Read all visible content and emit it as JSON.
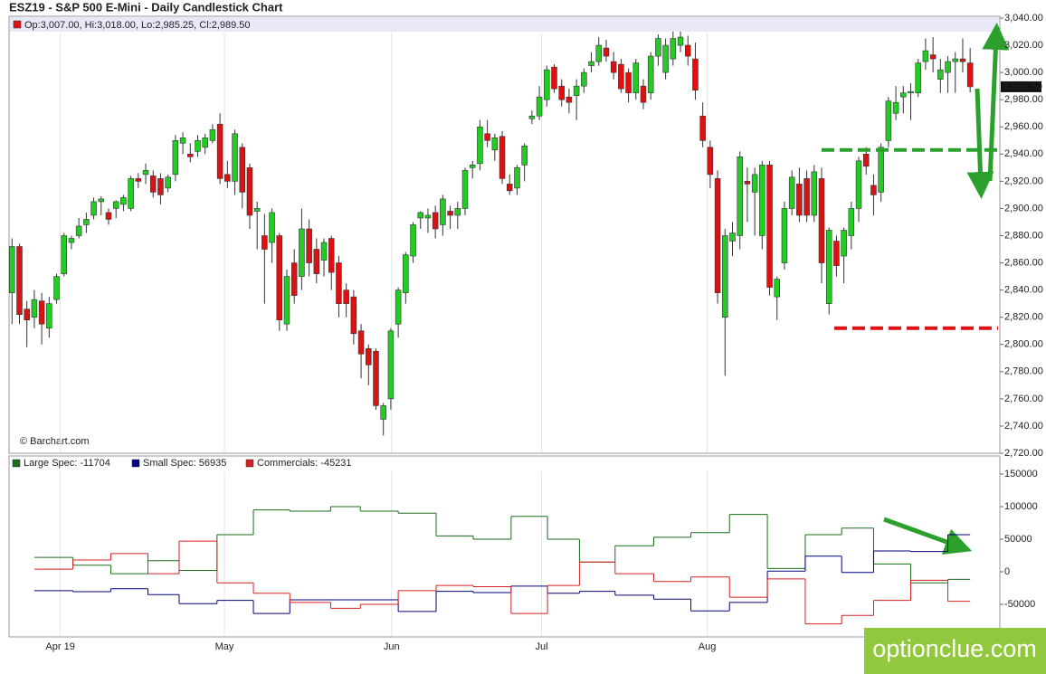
{
  "title": "ESZ19 - S&P 500 E-Mini - Daily Candlestick Chart",
  "copyright": "© Barchart.com",
  "watermark": "optionclue.com",
  "chart_data": [
    {
      "type": "candlestick",
      "legend": "Op:3,007.00, Hi:3,018.00, Lo:2,985.25, Cl:2,989.50",
      "up_color": "#22cc22",
      "down_color": "#dd1111",
      "xlim": [
        -0.4,
        133
      ],
      "xticks": [
        {
          "value": 6.5,
          "label": "Apr 19"
        },
        {
          "value": 28.6,
          "label": "May"
        },
        {
          "value": 51.1,
          "label": "Jun"
        },
        {
          "value": 71.3,
          "label": "Jul"
        },
        {
          "value": 93.6,
          "label": "Aug"
        }
      ],
      "ylim": [
        2720,
        3040
      ],
      "yticks": [
        {
          "value": 2720,
          "label": "2,720.00"
        },
        {
          "value": 2740,
          "label": "2,740.00"
        },
        {
          "value": 2760,
          "label": "2,760.00"
        },
        {
          "value": 2780,
          "label": "2,780.00"
        },
        {
          "value": 2800,
          "label": "2,800.00"
        },
        {
          "value": 2820,
          "label": "2,820.00"
        },
        {
          "value": 2840,
          "label": "2,840.00"
        },
        {
          "value": 2860,
          "label": "2,860.00"
        },
        {
          "value": 2880,
          "label": "2,880.00"
        },
        {
          "value": 2900,
          "label": "2,900.00"
        },
        {
          "value": 2920,
          "label": "2,920.00"
        },
        {
          "value": 2940,
          "label": "2,940.00"
        },
        {
          "value": 2960,
          "label": "2,960.00"
        },
        {
          "value": 2980,
          "label": "2,980.00"
        },
        {
          "value": 3000,
          "label": "3,000.00"
        },
        {
          "value": 3020,
          "label": "3,020.00"
        },
        {
          "value": 3040,
          "label": "3,040.00"
        }
      ],
      "last_price": {
        "value": 2989.5,
        "label": "2,989.50"
      },
      "reference_lines": [
        {
          "value": 2943,
          "color": "#2ca02c",
          "from": 109
        },
        {
          "value": 2812,
          "color": "#dd1111",
          "from": 110.7
        }
      ],
      "ohlc": [
        [
          2838,
          2878,
          2815,
          2872
        ],
        [
          2872,
          2874,
          2815,
          2822
        ],
        [
          2826,
          2832,
          2798,
          2818
        ],
        [
          2820,
          2840,
          2812,
          2833
        ],
        [
          2832,
          2838,
          2800,
          2815
        ],
        [
          2812,
          2835,
          2805,
          2830
        ],
        [
          2833,
          2852,
          2830,
          2850
        ],
        [
          2852,
          2882,
          2850,
          2880
        ],
        [
          2875,
          2880,
          2870,
          2878
        ],
        [
          2880,
          2893,
          2878,
          2887
        ],
        [
          2888,
          2897,
          2882,
          2892
        ],
        [
          2895,
          2908,
          2892,
          2905
        ],
        [
          2905,
          2909,
          2895,
          2907
        ],
        [
          2897,
          2900,
          2888,
          2892
        ],
        [
          2900,
          2906,
          2893,
          2905
        ],
        [
          2903,
          2910,
          2898,
          2908
        ],
        [
          2900,
          2924,
          2898,
          2922
        ],
        [
          2922,
          2926,
          2915,
          2920
        ],
        [
          2925,
          2933,
          2918,
          2928
        ],
        [
          2924,
          2928,
          2908,
          2912
        ],
        [
          2922,
          2926,
          2903,
          2910
        ],
        [
          2915,
          2925,
          2912,
          2923
        ],
        [
          2925,
          2954,
          2920,
          2950
        ],
        [
          2948,
          2956,
          2940,
          2952
        ],
        [
          2940,
          2948,
          2934,
          2938
        ],
        [
          2942,
          2954,
          2938,
          2950
        ],
        [
          2945,
          2955,
          2940,
          2952
        ],
        [
          2950,
          2962,
          2948,
          2958
        ],
        [
          2962,
          2970,
          2918,
          2922
        ],
        [
          2925,
          2935,
          2915,
          2920
        ],
        [
          2920,
          2958,
          2910,
          2955
        ],
        [
          2945,
          2948,
          2900,
          2912
        ],
        [
          2930,
          2933,
          2885,
          2895
        ],
        [
          2898,
          2905,
          2870,
          2900
        ],
        [
          2880,
          2896,
          2830,
          2870
        ],
        [
          2875,
          2900,
          2860,
          2897
        ],
        [
          2880,
          2882,
          2810,
          2818
        ],
        [
          2815,
          2855,
          2810,
          2850
        ],
        [
          2860,
          2870,
          2830,
          2836
        ],
        [
          2850,
          2900,
          2840,
          2885
        ],
        [
          2885,
          2892,
          2850,
          2860
        ],
        [
          2870,
          2878,
          2845,
          2852
        ],
        [
          2862,
          2878,
          2850,
          2875
        ],
        [
          2878,
          2880,
          2840,
          2853
        ],
        [
          2860,
          2865,
          2820,
          2830
        ],
        [
          2840,
          2845,
          2820,
          2830
        ],
        [
          2835,
          2840,
          2800,
          2808
        ],
        [
          2810,
          2815,
          2775,
          2793
        ],
        [
          2797,
          2800,
          2770,
          2785
        ],
        [
          2795,
          2797,
          2752,
          2755
        ],
        [
          2745,
          2757,
          2733,
          2755
        ],
        [
          2760,
          2812,
          2752,
          2810
        ],
        [
          2815,
          2842,
          2805,
          2840
        ],
        [
          2838,
          2868,
          2830,
          2866
        ],
        [
          2865,
          2890,
          2860,
          2888
        ],
        [
          2893,
          2898,
          2885,
          2897
        ],
        [
          2893,
          2900,
          2882,
          2895
        ],
        [
          2897,
          2902,
          2878,
          2885
        ],
        [
          2888,
          2910,
          2880,
          2907
        ],
        [
          2898,
          2902,
          2885,
          2895
        ],
        [
          2895,
          2905,
          2885,
          2900
        ],
        [
          2900,
          2930,
          2895,
          2928
        ],
        [
          2930,
          2935,
          2922,
          2932
        ],
        [
          2933,
          2965,
          2928,
          2960
        ],
        [
          2955,
          2965,
          2945,
          2950
        ],
        [
          2943,
          2955,
          2935,
          2952
        ],
        [
          2953,
          2957,
          2918,
          2922
        ],
        [
          2918,
          2925,
          2910,
          2913
        ],
        [
          2915,
          2932,
          2910,
          2930
        ],
        [
          2932,
          2948,
          2920,
          2946
        ],
        [
          2966,
          2972,
          2962,
          2968
        ],
        [
          2968,
          2990,
          2965,
          2982
        ],
        [
          2980,
          3005,
          2975,
          3002
        ],
        [
          3004,
          3006,
          2985,
          2988
        ],
        [
          2990,
          2995,
          2975,
          2980
        ],
        [
          2982,
          2988,
          2970,
          2978
        ],
        [
          2983,
          2995,
          2965,
          2990
        ],
        [
          2990,
          3003,
          2985,
          3000
        ],
        [
          3005,
          3015,
          3000,
          3008
        ],
        [
          3008,
          3026,
          3005,
          3020
        ],
        [
          3018,
          3024,
          3008,
          3012
        ],
        [
          3008,
          3015,
          2995,
          3000
        ],
        [
          3006,
          3010,
          2985,
          2988
        ],
        [
          3000,
          3003,
          2978,
          2985
        ],
        [
          2985,
          3010,
          2980,
          3007
        ],
        [
          2990,
          2995,
          2973,
          2978
        ],
        [
          2985,
          3015,
          2980,
          3012
        ],
        [
          3012,
          3028,
          3005,
          3025
        ],
        [
          3000,
          3025,
          2995,
          3020
        ],
        [
          3010,
          3030,
          3005,
          3025
        ],
        [
          3020,
          3030,
          3015,
          3026
        ],
        [
          3020,
          3027,
          3005,
          3012
        ],
        [
          3010,
          3022,
          2980,
          2987
        ],
        [
          2968,
          2978,
          2945,
          2950
        ],
        [
          2945,
          2950,
          2915,
          2925
        ],
        [
          2922,
          2928,
          2830,
          2838
        ],
        [
          2820,
          2885,
          2777,
          2880
        ],
        [
          2876,
          2890,
          2865,
          2882
        ],
        [
          2880,
          2942,
          2870,
          2938
        ],
        [
          2920,
          2930,
          2890,
          2918
        ],
        [
          2912,
          2930,
          2880,
          2925
        ],
        [
          2880,
          2935,
          2870,
          2932
        ],
        [
          2932,
          2935,
          2836,
          2842
        ],
        [
          2835,
          2850,
          2818,
          2848
        ],
        [
          2860,
          2905,
          2855,
          2900
        ],
        [
          2900,
          2928,
          2895,
          2923
        ],
        [
          2918,
          2930,
          2890,
          2895
        ],
        [
          2922,
          2928,
          2890,
          2895
        ],
        [
          2895,
          2932,
          2890,
          2927
        ],
        [
          2922,
          2930,
          2845,
          2860
        ],
        [
          2830,
          2886,
          2822,
          2884
        ],
        [
          2876,
          2880,
          2850,
          2858
        ],
        [
          2865,
          2886,
          2845,
          2884
        ],
        [
          2880,
          2905,
          2870,
          2900
        ],
        [
          2900,
          2938,
          2890,
          2935
        ],
        [
          2940,
          2945,
          2925,
          2931
        ],
        [
          2917,
          2925,
          2895,
          2910
        ],
        [
          2912,
          2948,
          2905,
          2945
        ],
        [
          2950,
          2982,
          2945,
          2979
        ],
        [
          2970,
          2990,
          2965,
          2978
        ],
        [
          2982,
          2990,
          2970,
          2985
        ],
        [
          2985,
          2992,
          2965,
          2986
        ],
        [
          2985,
          3010,
          2982,
          3007
        ],
        [
          3008,
          3025,
          3002,
          3016
        ],
        [
          3013,
          3026,
          3000,
          3010
        ],
        [
          2995,
          3010,
          2985,
          3002
        ],
        [
          3000,
          3012,
          2985,
          3008
        ],
        [
          3008,
          3015,
          2985,
          3010
        ],
        [
          3010,
          3025,
          3000,
          3008
        ],
        [
          3007,
          3018,
          2985.25,
          2989.5
        ]
      ]
    },
    {
      "type": "line",
      "step": true,
      "x": [
        3.0,
        8.2,
        13.3,
        18.3,
        22.5,
        27.6,
        32.5,
        37.4,
        42.9,
        46.9,
        52.0,
        57.1,
        62.1,
        67.2,
        72.1,
        76.4,
        81.2,
        86.4,
        91.4,
        96.6,
        101.7,
        106.8,
        111.7,
        116.0,
        121.0,
        126.0
      ],
      "ylim": [
        -100000,
        175000
      ],
      "yticks": [
        150000,
        100000,
        50000,
        0,
        -50000
      ],
      "series": [
        {
          "name": "Large Spec: -11704",
          "color": "#1a6b1a",
          "values": [
            22000,
            10000,
            -3000,
            17000,
            2000,
            57000,
            95000,
            93000,
            100000,
            93000,
            90000,
            55000,
            50000,
            85000,
            50000,
            15000,
            40000,
            53000,
            60000,
            88000,
            5000,
            57000,
            67000,
            12000,
            -17000,
            -11704
          ]
        },
        {
          "name": "Small Spec: 56935",
          "color": "#00007f",
          "values": [
            -29000,
            -30500,
            -26000,
            -35000,
            -49000,
            -44000,
            -64000,
            -43000,
            -43000,
            -43000,
            -61000,
            -30000,
            -32000,
            -22000,
            -33000,
            -30000,
            -36000,
            -42000,
            -60000,
            -47000,
            1000,
            24000,
            -1000,
            32000,
            31000,
            56935
          ]
        },
        {
          "name": "Commercials: -45231",
          "color": "#d42020",
          "values": [
            4000,
            18000,
            28000,
            -3000,
            47000,
            -17000,
            -33000,
            -47000,
            -56000,
            -50000,
            -29000,
            -21000,
            -23000,
            -64000,
            -21000,
            15000,
            -3000,
            -15000,
            -8000,
            -39000,
            -11000,
            -80000,
            -67000,
            -44000,
            -13000,
            -45231
          ]
        }
      ]
    }
  ]
}
